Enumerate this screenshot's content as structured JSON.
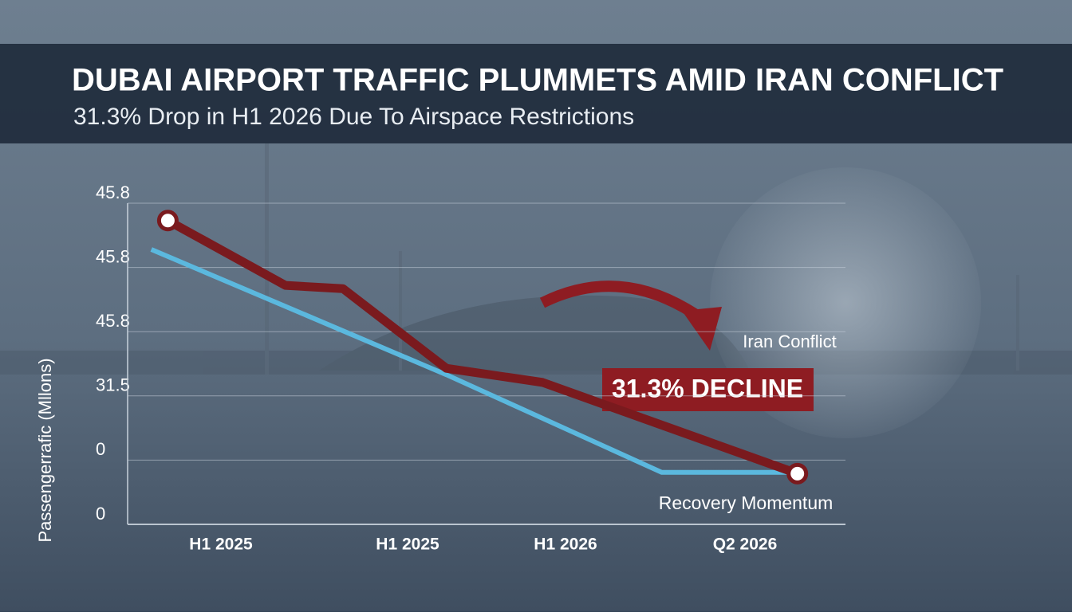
{
  "chart_data": {
    "type": "line",
    "title": "DUBAI AIRPORT TRAFFIC PLUMMETS AMID IRAN CONFLICT",
    "subtitle": "31.3% Drop in H1 2026 Due To Airspace Restrictions",
    "y_label": "Passengerrafic (Mllons)",
    "xlim": [
      0,
      10
    ],
    "xticks": [
      {
        "value": 1.3,
        "label": "H1 2025"
      },
      {
        "value": 3.9,
        "label": "H1 2025"
      },
      {
        "value": 6.1,
        "label": "H1 2026"
      },
      {
        "value": 8.6,
        "label": "Q2 2026"
      }
    ],
    "ylim": [
      0,
      5.2
    ],
    "yticks": [
      {
        "value": 0,
        "label": "0"
      },
      {
        "value": 1,
        "label": "0"
      },
      {
        "value": 2,
        "label": "31.5"
      },
      {
        "value": 3,
        "label": "45.8"
      },
      {
        "value": 4,
        "label": "45.8"
      },
      {
        "value": 5,
        "label": "45.8"
      }
    ],
    "grid": true,
    "series": [
      {
        "color": "#7a1a1e",
        "x": [
          0.56,
          2.2,
          3.0,
          4.44,
          5.78,
          9.33
        ],
        "values": [
          4.73,
          3.72,
          3.67,
          2.43,
          2.21,
          0.79
        ]
      },
      {
        "color": "#5bb8de",
        "x": [
          0.33,
          4.44,
          7.44,
          9.33
        ],
        "values": [
          4.28,
          2.33,
          0.81,
          0.81
        ]
      }
    ],
    "annotations": [
      "Iran Conflict",
      "31.3% DECLINE",
      "Recovery Momentum"
    ]
  }
}
